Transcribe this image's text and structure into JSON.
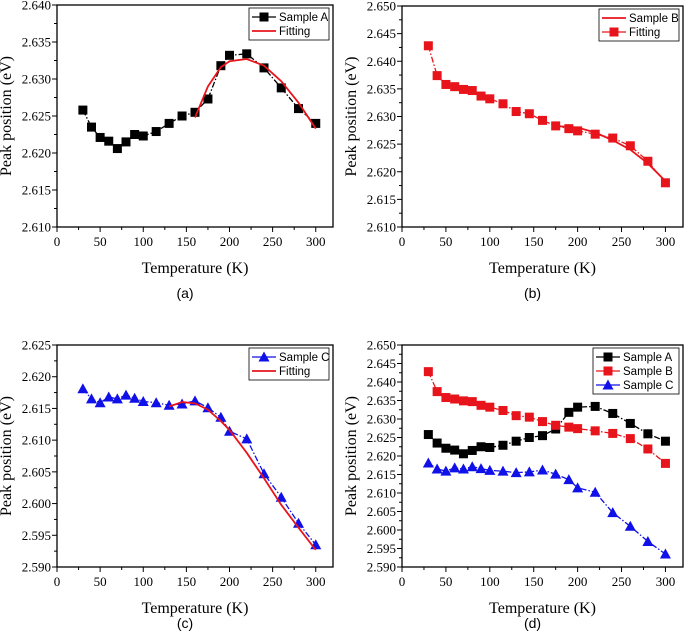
{
  "chart_data": [
    {
      "type": "line",
      "caption": "(a)",
      "xlabel": "Temperature (K)",
      "ylabel": "Peak position (eV)",
      "xlim": [
        0,
        320
      ],
      "ylim": [
        2.61,
        2.64
      ],
      "xticks": [
        "0",
        "50",
        "100",
        "150",
        "200",
        "250",
        "300"
      ],
      "yticks": [
        "2.610",
        "2.615",
        "2.620",
        "2.625",
        "2.630",
        "2.635",
        "2.640"
      ],
      "legend_position": "top-right",
      "series": [
        {
          "name": "Sample A",
          "color": "#000000",
          "marker": "square",
          "line": "dash-dot",
          "x": [
            30,
            40,
            50,
            60,
            70,
            80,
            90,
            100,
            115,
            130,
            145,
            160,
            175,
            190,
            200,
            220,
            240,
            260,
            280,
            300
          ],
          "y": [
            2.6258,
            2.6235,
            2.6221,
            2.6216,
            2.6206,
            2.6215,
            2.6225,
            2.6223,
            2.6229,
            2.624,
            2.625,
            2.6255,
            2.6273,
            2.6318,
            2.6332,
            2.6334,
            2.6315,
            2.6288,
            2.626,
            2.624
          ]
        },
        {
          "name": "Fitting",
          "color": "#e8141b",
          "marker": "none",
          "line": "solid",
          "x": [
            160,
            175,
            190,
            200,
            220,
            240,
            260,
            280,
            300
          ],
          "y": [
            2.6248,
            2.629,
            2.6316,
            2.6324,
            2.6327,
            2.6318,
            2.6297,
            2.6268,
            2.6233
          ]
        }
      ]
    },
    {
      "type": "line",
      "caption": "(b)",
      "xlabel": "Temperature (K)",
      "ylabel": "Peak position (eV)",
      "xlim": [
        0,
        320
      ],
      "ylim": [
        2.61,
        2.65
      ],
      "xticks": [
        "0",
        "50",
        "100",
        "150",
        "200",
        "250",
        "300"
      ],
      "yticks": [
        "2.610",
        "2.615",
        "2.620",
        "2.625",
        "2.630",
        "2.635",
        "2.640",
        "2.645",
        "2.650"
      ],
      "legend_position": "top-right",
      "series": [
        {
          "name": "Sample B",
          "color": "#e8141b",
          "marker": "none",
          "line": "solid",
          "x": [
            175,
            190,
            200,
            220,
            240,
            260,
            280,
            300
          ],
          "y": [
            2.6283,
            2.6281,
            2.628,
            2.6271,
            2.6257,
            2.624,
            2.6215,
            2.6183
          ]
        },
        {
          "name": "Fitting",
          "color": "#e8141b",
          "marker": "square",
          "line": "dash-dot",
          "x": [
            30,
            40,
            50,
            60,
            70,
            80,
            90,
            100,
            115,
            130,
            145,
            160,
            175,
            190,
            200,
            220,
            240,
            260,
            280,
            300
          ],
          "y": [
            2.6428,
            2.6374,
            2.6358,
            2.6354,
            2.6349,
            2.6347,
            2.6337,
            2.6332,
            2.6323,
            2.6309,
            2.6305,
            2.6293,
            2.6283,
            2.6278,
            2.6274,
            2.6268,
            2.6261,
            2.6247,
            2.6219,
            2.618
          ]
        }
      ]
    },
    {
      "type": "line",
      "caption": "(c)",
      "xlabel": "Temperature (K)",
      "ylabel": "Peak position (eV)",
      "xlim": [
        0,
        320
      ],
      "ylim": [
        2.59,
        2.625
      ],
      "xticks": [
        "0",
        "50",
        "100",
        "150",
        "200",
        "250",
        "300"
      ],
      "yticks": [
        "2.590",
        "2.595",
        "2.600",
        "2.605",
        "2.610",
        "2.615",
        "2.620",
        "2.625"
      ],
      "legend_position": "top-right",
      "series": [
        {
          "name": "Sample C",
          "color": "#1010e8",
          "marker": "triangle",
          "line": "dash-dot",
          "x": [
            30,
            40,
            50,
            60,
            70,
            80,
            90,
            100,
            115,
            130,
            145,
            160,
            175,
            190,
            200,
            220,
            240,
            260,
            280,
            300
          ],
          "y": [
            2.6181,
            2.6165,
            2.6159,
            2.6168,
            2.6165,
            2.6171,
            2.6166,
            2.6161,
            2.6159,
            2.6155,
            2.6157,
            2.6162,
            2.6151,
            2.6136,
            2.6114,
            2.6102,
            2.6047,
            2.601,
            2.5969,
            2.5935
          ]
        },
        {
          "name": "Fitting",
          "color": "#e8141b",
          "marker": "none",
          "line": "solid",
          "x": [
            130,
            145,
            160,
            175,
            190,
            200,
            220,
            240,
            260,
            280,
            300
          ],
          "y": [
            2.6153,
            2.616,
            2.6158,
            2.6148,
            2.613,
            2.6116,
            2.608,
            2.604,
            2.5998,
            2.5962,
            2.5927
          ]
        }
      ]
    },
    {
      "type": "line",
      "caption": "(d)",
      "xlabel": "Temperature (K)",
      "ylabel": "Peak position (eV)",
      "xlim": [
        0,
        320
      ],
      "ylim": [
        2.59,
        2.65
      ],
      "xticks": [
        "0",
        "50",
        "100",
        "150",
        "200",
        "250",
        "300"
      ],
      "yticks": [
        "2.590",
        "2.595",
        "2.600",
        "2.605",
        "2.610",
        "2.615",
        "2.620",
        "2.625",
        "2.630",
        "2.635",
        "2.640",
        "2.645",
        "2.650"
      ],
      "legend_position": "top-right",
      "series": [
        {
          "name": "Sample A",
          "color": "#000000",
          "marker": "square",
          "line": "dash-dot",
          "x": [
            30,
            40,
            50,
            60,
            70,
            80,
            90,
            100,
            115,
            130,
            145,
            160,
            175,
            190,
            200,
            220,
            240,
            260,
            280,
            300
          ],
          "y": [
            2.6258,
            2.6235,
            2.6221,
            2.6216,
            2.6206,
            2.6215,
            2.6225,
            2.6223,
            2.6229,
            2.624,
            2.625,
            2.6255,
            2.6273,
            2.6318,
            2.6332,
            2.6334,
            2.6315,
            2.6288,
            2.626,
            2.624
          ]
        },
        {
          "name": "Sample B",
          "color": "#e8141b",
          "marker": "square",
          "line": "dash-dot",
          "x": [
            30,
            40,
            50,
            60,
            70,
            80,
            90,
            100,
            115,
            130,
            145,
            160,
            175,
            190,
            200,
            220,
            240,
            260,
            280,
            300
          ],
          "y": [
            2.6428,
            2.6374,
            2.6358,
            2.6354,
            2.6349,
            2.6347,
            2.6337,
            2.6332,
            2.6323,
            2.6309,
            2.6305,
            2.6293,
            2.6283,
            2.6278,
            2.6274,
            2.6268,
            2.6261,
            2.6247,
            2.6219,
            2.618
          ]
        },
        {
          "name": "Sample C",
          "color": "#1010e8",
          "marker": "triangle",
          "line": "dash-dot",
          "x": [
            30,
            40,
            50,
            60,
            70,
            80,
            90,
            100,
            115,
            130,
            145,
            160,
            175,
            190,
            200,
            220,
            240,
            260,
            280,
            300
          ],
          "y": [
            2.6181,
            2.6165,
            2.6159,
            2.6168,
            2.6165,
            2.6171,
            2.6166,
            2.6161,
            2.6159,
            2.6155,
            2.6157,
            2.6162,
            2.6151,
            2.6136,
            2.6114,
            2.6102,
            2.6047,
            2.601,
            2.5969,
            2.5935
          ]
        }
      ]
    }
  ]
}
